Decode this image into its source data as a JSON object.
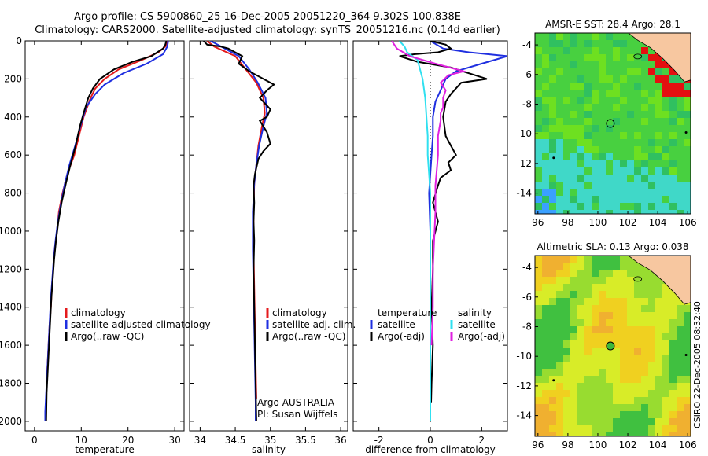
{
  "title_line1": "Argo profile: CS 5900860_25 16-Dec-2005 20051220_364 9.302S 100.838E",
  "title_line2": "Climatology: CARS2000. Satellite-adjusted climatology: synTS_20051216.nc (0.14d earlier)",
  "depth_ticks": [
    "0",
    "200",
    "400",
    "600",
    "800",
    "1000",
    "1200",
    "1400",
    "1600",
    "1800",
    "2000"
  ],
  "stamp": "CSIRO 22-Dec-2005 08:32:40",
  "colors": {
    "climatology": "#e41a1c",
    "satellite": "#1f2fe0",
    "argo": "#000000",
    "cyan": "#30e0f0",
    "magenta": "#e020e0"
  },
  "chart_data": [
    {
      "type": "line",
      "id": "temp",
      "xlabel": "temperature",
      "xlim": [
        -2,
        32
      ],
      "ylim": [
        0,
        2050
      ],
      "xticks": [
        "0",
        "10",
        "20",
        "30"
      ],
      "xtick_vals": [
        0,
        10,
        20,
        30
      ],
      "legend": [
        "climatology",
        "satellite-adjusted climatology",
        "Argo(..raw -QC)"
      ],
      "series": [
        {
          "name": "climatology",
          "color": "climatology",
          "points": [
            [
              28.5,
              0
            ],
            [
              28,
              30
            ],
            [
              26.5,
              60
            ],
            [
              23,
              100
            ],
            [
              18,
              150
            ],
            [
              15,
              200
            ],
            [
              13,
              250
            ],
            [
              12,
              300
            ],
            [
              10.5,
              400
            ],
            [
              9.5,
              500
            ],
            [
              8.5,
              600
            ],
            [
              7,
              700
            ],
            [
              6,
              800
            ],
            [
              5.2,
              900
            ],
            [
              4.8,
              1000
            ],
            [
              4.3,
              1100
            ],
            [
              4,
              1200
            ],
            [
              3.7,
              1300
            ],
            [
              3.5,
              1400
            ],
            [
              3.2,
              1500
            ],
            [
              3,
              1600
            ],
            [
              2.8,
              1700
            ],
            [
              2.6,
              1800
            ],
            [
              2.5,
              1880
            ]
          ]
        },
        {
          "name": "satellite",
          "color": "satellite",
          "points": [
            [
              28.6,
              0
            ],
            [
              28.4,
              30
            ],
            [
              27.5,
              70
            ],
            [
              24,
              120
            ],
            [
              19,
              170
            ],
            [
              15,
              230
            ],
            [
              13,
              280
            ],
            [
              11,
              350
            ],
            [
              9.8,
              450
            ],
            [
              8.7,
              550
            ],
            [
              7.5,
              650
            ],
            [
              6.5,
              750
            ],
            [
              5.7,
              850
            ],
            [
              5,
              950
            ],
            [
              4.5,
              1050
            ],
            [
              4.1,
              1150
            ],
            [
              3.8,
              1250
            ],
            [
              3.5,
              1350
            ],
            [
              3.3,
              1450
            ],
            [
              3.1,
              1550
            ],
            [
              2.9,
              1650
            ],
            [
              2.7,
              1750
            ],
            [
              2.5,
              1850
            ],
            [
              2.3,
              1950
            ],
            [
              2.3,
              2000
            ]
          ]
        },
        {
          "name": "Argo",
          "color": "argo",
          "points": [
            [
              28.2,
              0
            ],
            [
              28,
              20
            ],
            [
              27.5,
              40
            ],
            [
              25,
              80
            ],
            [
              21,
              110
            ],
            [
              17,
              150
            ],
            [
              14,
              200
            ],
            [
              12.5,
              250
            ],
            [
              11.5,
              300
            ],
            [
              10.5,
              380
            ],
            [
              9.7,
              450
            ],
            [
              8.8,
              550
            ],
            [
              7.7,
              650
            ],
            [
              6.7,
              750
            ],
            [
              5.8,
              850
            ],
            [
              5.1,
              950
            ],
            [
              4.6,
              1050
            ],
            [
              4.2,
              1150
            ],
            [
              3.9,
              1250
            ],
            [
              3.6,
              1350
            ],
            [
              3.4,
              1450
            ],
            [
              3.2,
              1550
            ],
            [
              3,
              1650
            ],
            [
              2.8,
              1750
            ],
            [
              2.6,
              1850
            ],
            [
              2.5,
              2000
            ]
          ]
        }
      ]
    },
    {
      "type": "line",
      "id": "sal",
      "xlabel": "salinity",
      "xlim": [
        33.85,
        36.1
      ],
      "ylim": [
        0,
        2050
      ],
      "xticks": [
        "34",
        "34.5",
        "35",
        "35.5",
        "36"
      ],
      "xtick_vals": [
        34,
        34.5,
        35,
        35.5,
        36
      ],
      "legend": [
        "climatology",
        "satellite adj. clim.",
        "Argo(..raw -QC)"
      ],
      "annotation": [
        "Argo AUSTRALIA",
        "PI: Susan Wijffels"
      ],
      "series": [
        {
          "name": "climatology",
          "color": "climatology",
          "points": [
            [
              34.1,
              0
            ],
            [
              34.2,
              30
            ],
            [
              34.5,
              80
            ],
            [
              34.65,
              150
            ],
            [
              34.8,
              220
            ],
            [
              34.9,
              300
            ],
            [
              34.92,
              380
            ],
            [
              34.88,
              450
            ],
            [
              34.83,
              550
            ],
            [
              34.8,
              650
            ],
            [
              34.77,
              750
            ],
            [
              34.76,
              900
            ],
            [
              34.76,
              1100
            ],
            [
              34.77,
              1300
            ],
            [
              34.78,
              1500
            ],
            [
              34.79,
              1700
            ],
            [
              34.8,
              1880
            ]
          ]
        },
        {
          "name": "satellite",
          "color": "satellite",
          "points": [
            [
              34.15,
              0
            ],
            [
              34.3,
              30
            ],
            [
              34.55,
              80
            ],
            [
              34.7,
              150
            ],
            [
              34.82,
              220
            ],
            [
              34.93,
              300
            ],
            [
              34.95,
              380
            ],
            [
              34.9,
              450
            ],
            [
              34.84,
              550
            ],
            [
              34.8,
              650
            ],
            [
              34.77,
              750
            ],
            [
              34.75,
              900
            ],
            [
              34.75,
              1100
            ],
            [
              34.76,
              1300
            ],
            [
              34.77,
              1500
            ],
            [
              34.78,
              1700
            ],
            [
              34.79,
              1900
            ],
            [
              34.79,
              2000
            ]
          ]
        },
        {
          "name": "Argo",
          "color": "argo",
          "points": [
            [
              34.05,
              0
            ],
            [
              34.1,
              20
            ],
            [
              34.3,
              30
            ],
            [
              34.4,
              40
            ],
            [
              34.6,
              80
            ],
            [
              34.55,
              120
            ],
            [
              34.7,
              160
            ],
            [
              34.9,
              200
            ],
            [
              35.05,
              230
            ],
            [
              34.95,
              260
            ],
            [
              34.85,
              300
            ],
            [
              34.9,
              320
            ],
            [
              35,
              360
            ],
            [
              34.95,
              400
            ],
            [
              34.85,
              420
            ],
            [
              34.95,
              480
            ],
            [
              35,
              540
            ],
            [
              34.9,
              580
            ],
            [
              34.83,
              620
            ],
            [
              34.78,
              700
            ],
            [
              34.76,
              760
            ],
            [
              34.77,
              850
            ],
            [
              34.76,
              950
            ],
            [
              34.77,
              1050
            ],
            [
              34.76,
              1200
            ],
            [
              34.77,
              1400
            ],
            [
              34.78,
              1600
            ],
            [
              34.79,
              1800
            ],
            [
              34.8,
              2000
            ]
          ]
        }
      ]
    },
    {
      "type": "line",
      "id": "diff",
      "xlabel": "difference from climatology",
      "xlim": [
        -3,
        3
      ],
      "ylim": [
        0,
        2050
      ],
      "xticks": [
        "-2",
        "0",
        "2"
      ],
      "xtick_vals": [
        -2,
        0,
        2
      ],
      "legend_left_title": "temperature",
      "legend_right_title": "salinity",
      "legend": [
        "satellite",
        "Argo(-adj)",
        "satellite",
        "Argo(-adj)"
      ],
      "series": [
        {
          "name": "temp satellite",
          "color": "satellite",
          "points": [
            [
              0,
              0
            ],
            [
              0.5,
              40
            ],
            [
              1.5,
              60
            ],
            [
              3,
              80
            ],
            [
              2,
              120
            ],
            [
              1,
              160
            ],
            [
              0.6,
              200
            ],
            [
              0.4,
              260
            ],
            [
              0.2,
              320
            ],
            [
              0.1,
              400
            ],
            [
              0.1,
              500
            ],
            [
              0.05,
              600
            ],
            [
              0,
              700
            ],
            [
              -0.05,
              800
            ],
            [
              0,
              1000
            ],
            [
              0,
              1200
            ],
            [
              0,
              1400
            ],
            [
              0,
              1600
            ],
            [
              0,
              1800
            ],
            [
              0,
              2000
            ]
          ]
        },
        {
          "name": "temp Argo",
          "color": "argo",
          "points": [
            [
              0,
              0
            ],
            [
              0.6,
              20
            ],
            [
              0.8,
              40
            ],
            [
              0.3,
              60
            ],
            [
              -0.6,
              70
            ],
            [
              -1.2,
              80
            ],
            [
              -0.5,
              110
            ],
            [
              0.8,
              140
            ],
            [
              2.2,
              200
            ],
            [
              1.2,
              220
            ],
            [
              0.8,
              280
            ],
            [
              0.6,
              320
            ],
            [
              0.5,
              400
            ],
            [
              0.6,
              500
            ],
            [
              0.8,
              550
            ],
            [
              1.0,
              600
            ],
            [
              0.7,
              640
            ],
            [
              0.8,
              680
            ],
            [
              0.4,
              720
            ],
            [
              0.3,
              760
            ],
            [
              0.1,
              850
            ],
            [
              0.3,
              950
            ],
            [
              0.1,
              1050
            ],
            [
              0.1,
              1200
            ],
            [
              0.05,
              1400
            ],
            [
              0.1,
              1600
            ],
            [
              0.05,
              1800
            ],
            [
              0.03,
              1900
            ]
          ]
        },
        {
          "name": "sal satellite",
          "color": "cyan",
          "points": [
            [
              -1.2,
              0
            ],
            [
              -1.0,
              30
            ],
            [
              -0.9,
              60
            ],
            [
              -0.5,
              100
            ],
            [
              -0.3,
              200
            ],
            [
              -0.2,
              300
            ],
            [
              -0.15,
              400
            ],
            [
              -0.1,
              500
            ],
            [
              -0.1,
              600
            ],
            [
              -0.05,
              700
            ],
            [
              0,
              800
            ],
            [
              0,
              1000
            ],
            [
              0,
              1200
            ],
            [
              0,
              1400
            ],
            [
              0,
              1600
            ],
            [
              0,
              1800
            ],
            [
              0,
              2000
            ]
          ]
        },
        {
          "name": "sal Argo",
          "color": "magenta",
          "points": [
            [
              -1.5,
              0
            ],
            [
              -1.3,
              40
            ],
            [
              -0.8,
              80
            ],
            [
              0.2,
              120
            ],
            [
              1.3,
              160
            ],
            [
              0.7,
              180
            ],
            [
              0.4,
              220
            ],
            [
              0.6,
              260
            ],
            [
              0.5,
              300
            ],
            [
              0.5,
              350
            ],
            [
              0.4,
              380
            ],
            [
              0.4,
              420
            ],
            [
              0.3,
              500
            ],
            [
              0.3,
              600
            ],
            [
              0.25,
              680
            ],
            [
              0.2,
              760
            ],
            [
              0.2,
              900
            ],
            [
              0.15,
              1050
            ],
            [
              0.1,
              1200
            ],
            [
              0.1,
              1400
            ],
            [
              0.05,
              1600
            ]
          ]
        }
      ]
    },
    {
      "type": "heatmap",
      "id": "sst",
      "title": "AMSR-E SST: 28.4 Argo: 28.1",
      "xlim": [
        95.8,
        106.2
      ],
      "ylim": [
        -15.4,
        -3.2
      ],
      "xticks": [
        "96",
        "98",
        "100",
        "102",
        "104",
        "106"
      ],
      "xtick_vals": [
        96,
        98,
        100,
        102,
        104,
        106
      ],
      "yticks": [
        "-4",
        "-6",
        "-8",
        "-10",
        "-12",
        "-14"
      ],
      "ytick_vals": [
        -4,
        -6,
        -8,
        -10,
        -12,
        -14
      ],
      "marker": [
        100.838,
        -9.302
      ]
    },
    {
      "type": "heatmap",
      "id": "sla",
      "title": "Altimetric SLA: 0.13 Argo: 0.038",
      "xlim": [
        95.8,
        106.2
      ],
      "ylim": [
        -15.4,
        -3.2
      ],
      "xticks": [
        "96",
        "98",
        "100",
        "102",
        "104",
        "106"
      ],
      "xtick_vals": [
        96,
        98,
        100,
        102,
        104,
        106
      ],
      "yticks": [
        "-4",
        "-6",
        "-8",
        "-10",
        "-12",
        "-14"
      ],
      "ytick_vals": [
        -4,
        -6,
        -8,
        -10,
        -12,
        -14
      ],
      "marker": [
        100.838,
        -9.302
      ]
    }
  ]
}
